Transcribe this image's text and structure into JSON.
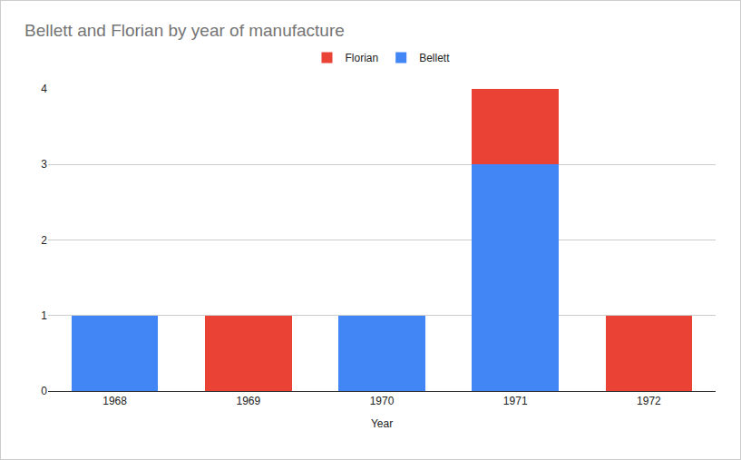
{
  "chart_data": {
    "type": "bar",
    "title": "Bellett and Florian by year of manufacture",
    "x_label": "Year",
    "categories": [
      "1968",
      "1969",
      "1970",
      "1971",
      "1972"
    ],
    "series": [
      {
        "name": "Bellett",
        "color": "#4285f4",
        "values": [
          1,
          0,
          1,
          3,
          0
        ]
      },
      {
        "name": "Florian",
        "color": "#ea4335",
        "values": [
          0,
          1,
          0,
          1,
          1
        ]
      }
    ],
    "stacked": true,
    "ylim": [
      0,
      4
    ],
    "yticks": [
      0,
      1,
      2,
      3,
      4
    ],
    "grid": true,
    "legend": "top"
  }
}
